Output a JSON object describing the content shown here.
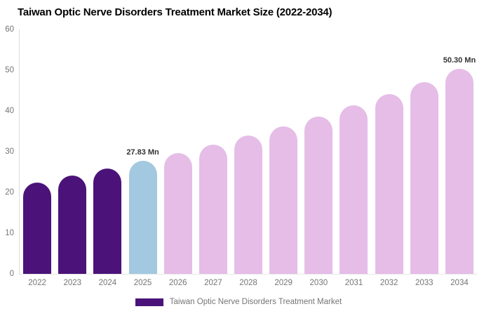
{
  "chart_data": {
    "type": "bar",
    "title": "Taiwan Optic Nerve Disorders Treatment Market Size (2022-2034)",
    "categories": [
      "2022",
      "2023",
      "2024",
      "2025",
      "2026",
      "2027",
      "2028",
      "2029",
      "2030",
      "2031",
      "2032",
      "2033",
      "2034"
    ],
    "values": [
      22.5,
      24.2,
      25.9,
      27.83,
      29.6,
      31.7,
      33.9,
      36.2,
      38.7,
      41.3,
      44.1,
      47.1,
      50.3
    ],
    "unit": "Mn",
    "data_labels": {
      "2025": "27.83 Mn",
      "2034": "50.30 Mn"
    },
    "colors": [
      "#4B1379",
      "#4B1379",
      "#4B1379",
      "#A2C9E0",
      "#E5BDE7",
      "#E5BDE7",
      "#E5BDE7",
      "#E5BDE7",
      "#E5BDE7",
      "#E5BDE7",
      "#E5BDE7",
      "#E5BDE7",
      "#E5BDE7"
    ],
    "xlabel": "",
    "ylabel": "",
    "ylim": [
      0,
      60
    ],
    "yticks": [
      0,
      10,
      20,
      30,
      40,
      50,
      60
    ],
    "grid": false,
    "legend_position": "bottom-center",
    "legend": [
      {
        "label": "Taiwan Optic Nerve Disorders Treatment Market",
        "color": "#4B1379"
      }
    ],
    "style": {
      "title_color": "#000000",
      "tick_label_color": "#757575",
      "data_label_color": "#333333",
      "y_axis_line_color": "#dcdcdc",
      "x_axis_line_color": "#e8e8e8",
      "background": "#ffffff"
    }
  }
}
